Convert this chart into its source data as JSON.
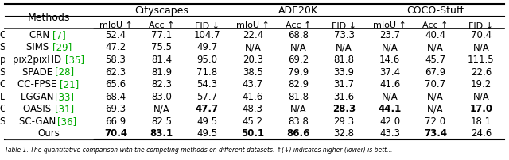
{
  "title": "",
  "caption": "Table 1. The quantitative comparison with the competing methods on different datasets. ↑(↓) indicates higher (lower) is bett...",
  "headers_row1": [
    "",
    "Cityscapes",
    "",
    "",
    "ADE20K",
    "",
    "",
    "COCO-Stuff",
    "",
    ""
  ],
  "headers_row2": [
    "Methods",
    "mIoU ↑",
    "Acc ↑",
    "FID ↓",
    "mIoU ↑",
    "Acc ↑",
    "FID ↓",
    "mIoU ↑",
    "Acc ↑",
    "FID ↓"
  ],
  "col_spans": {
    "Cityscapes": [
      1,
      4
    ],
    "ADE20K": [
      4,
      7
    ],
    "COCO-Stuff": [
      7,
      10
    ]
  },
  "rows": [
    [
      "CRN [7]",
      "52.4",
      "77.1",
      "104.7",
      "22.4",
      "68.8",
      "73.3",
      "23.7",
      "40.4",
      "70.4"
    ],
    [
      "SIMS [29]",
      "47.2",
      "75.5",
      "49.7",
      "N/A",
      "N/A",
      "N/A",
      "N/A",
      "N/A",
      "N/A"
    ],
    [
      "pix2pixHD [35]",
      "58.3",
      "81.4",
      "95.0",
      "20.3",
      "69.2",
      "81.8",
      "14.6",
      "45.7",
      "111.5"
    ],
    [
      "SPADE [28]",
      "62.3",
      "81.9",
      "71.8",
      "38.5",
      "79.9",
      "33.9",
      "37.4",
      "67.9",
      "22.6"
    ],
    [
      "CC-FPSE [21]",
      "65.6",
      "82.3",
      "54.3",
      "43.7",
      "82.9",
      "31.7",
      "41.6",
      "70.7",
      "19.2"
    ],
    [
      "LGGAN [33]",
      "68.4",
      "83.0",
      "57.7",
      "41.6",
      "81.8",
      "31.6",
      "N/A",
      "N/A",
      "N/A"
    ],
    [
      "OASIS [31]",
      "69.3",
      "N/A",
      "47.7",
      "48.3",
      "N/A",
      "28.3",
      "44.1",
      "N/A",
      "17.0"
    ],
    [
      "SC-GAN [36]",
      "66.9",
      "82.5",
      "49.5",
      "45.2",
      "83.8",
      "29.3",
      "42.0",
      "72.0",
      "18.1"
    ],
    [
      "Ours",
      "70.4",
      "83.1",
      "49.5",
      "50.1",
      "86.6",
      "32.8",
      "43.3",
      "73.4",
      "24.6"
    ]
  ],
  "bold_cells": {
    "6": [
      3,
      6,
      7,
      9
    ],
    "8": [
      1,
      2,
      4,
      5,
      8
    ]
  },
  "green_refs": {
    "CRN [7]": "[7]",
    "SIMS [29]": "[29]",
    "pix2pixHD [35]": "[35]",
    "SPADE [28]": "[28]",
    "CC-FPSE [21]": "[21]",
    "LGGAN [33]": "[33]",
    "OASIS [31]": "[31]",
    "SC-GAN [36]": "[36]"
  },
  "background_color": "#ffffff",
  "header_bg": "#f0f0f0",
  "line_color": "#000000",
  "text_color": "#000000",
  "green_color": "#00aa00",
  "font_size": 8.5,
  "header_font_size": 9.0
}
